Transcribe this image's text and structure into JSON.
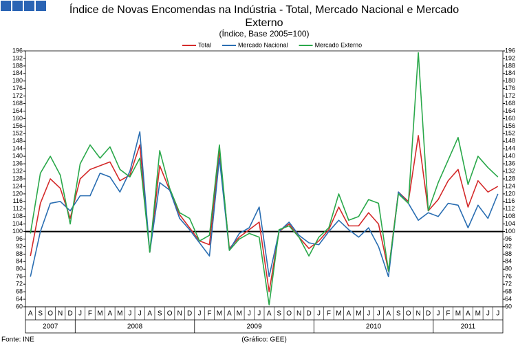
{
  "chart_data": {
    "type": "line",
    "title": "Índice de Novas Encomendas na Indústria - Total, Mercado Nacional e Mercado Externo",
    "subtitle": "(Índice, Base 2005=100)",
    "categories": [
      "A",
      "S",
      "O",
      "N",
      "D",
      "J",
      "F",
      "M",
      "A",
      "M",
      "J",
      "J",
      "A",
      "S",
      "O",
      "N",
      "D",
      "J",
      "F",
      "M",
      "A",
      "M",
      "J",
      "J",
      "A",
      "S",
      "O",
      "N",
      "D",
      "J",
      "F",
      "M",
      "A",
      "M",
      "J",
      "J",
      "A",
      "S",
      "O",
      "N",
      "D",
      "J",
      "F",
      "M",
      "A",
      "M",
      "J",
      "J"
    ],
    "years": [
      "2007",
      "2008",
      "2009",
      "2010",
      "2011"
    ],
    "series": [
      {
        "name": "Total",
        "color": "#d42a2a",
        "values": [
          87,
          115,
          128,
          123,
          107,
          128,
          133,
          135,
          137,
          127,
          130,
          146,
          89,
          135,
          122,
          109,
          102,
          95,
          93,
          143,
          91,
          97,
          101,
          105,
          68,
          100,
          104,
          97,
          91,
          95,
          101,
          113,
          103,
          103,
          110,
          104,
          79,
          121,
          116,
          151,
          111,
          117,
          127,
          133,
          113,
          127,
          121,
          124
        ]
      },
      {
        "name": "Mercado Nacional",
        "color": "#2a6eb2",
        "values": [
          76,
          100,
          115,
          116,
          111,
          119,
          119,
          131,
          129,
          121,
          132,
          153,
          89,
          126,
          122,
          107,
          101,
          94,
          87,
          139,
          90,
          99,
          102,
          113,
          76,
          100,
          105,
          98,
          94,
          93,
          100,
          106,
          101,
          97,
          102,
          92,
          76,
          121,
          115,
          106,
          110,
          108,
          115,
          114,
          102,
          114,
          107,
          120
        ]
      },
      {
        "name": "Mercado Externo",
        "color": "#2aa84a",
        "values": [
          99,
          131,
          140,
          130,
          104,
          136,
          146,
          139,
          145,
          133,
          129,
          139,
          89,
          143,
          123,
          110,
          107,
          95,
          98,
          146,
          90,
          96,
          99,
          97,
          61,
          101,
          103,
          97,
          87,
          97,
          102,
          120,
          106,
          108,
          117,
          115,
          79,
          120,
          115,
          195,
          111,
          126,
          138,
          150,
          125,
          140,
          134,
          129
        ]
      }
    ],
    "reference_line": 100,
    "ylim": [
      60,
      196
    ],
    "yticks": [
      60,
      64,
      68,
      72,
      76,
      80,
      84,
      88,
      92,
      96,
      100,
      104,
      108,
      112,
      116,
      120,
      124,
      128,
      132,
      136,
      140,
      144,
      148,
      152,
      156,
      160,
      164,
      168,
      172,
      176,
      180,
      184,
      188,
      192,
      196
    ],
    "source": "Fonte: INE",
    "credit": "(Gráfico: GEE)"
  }
}
